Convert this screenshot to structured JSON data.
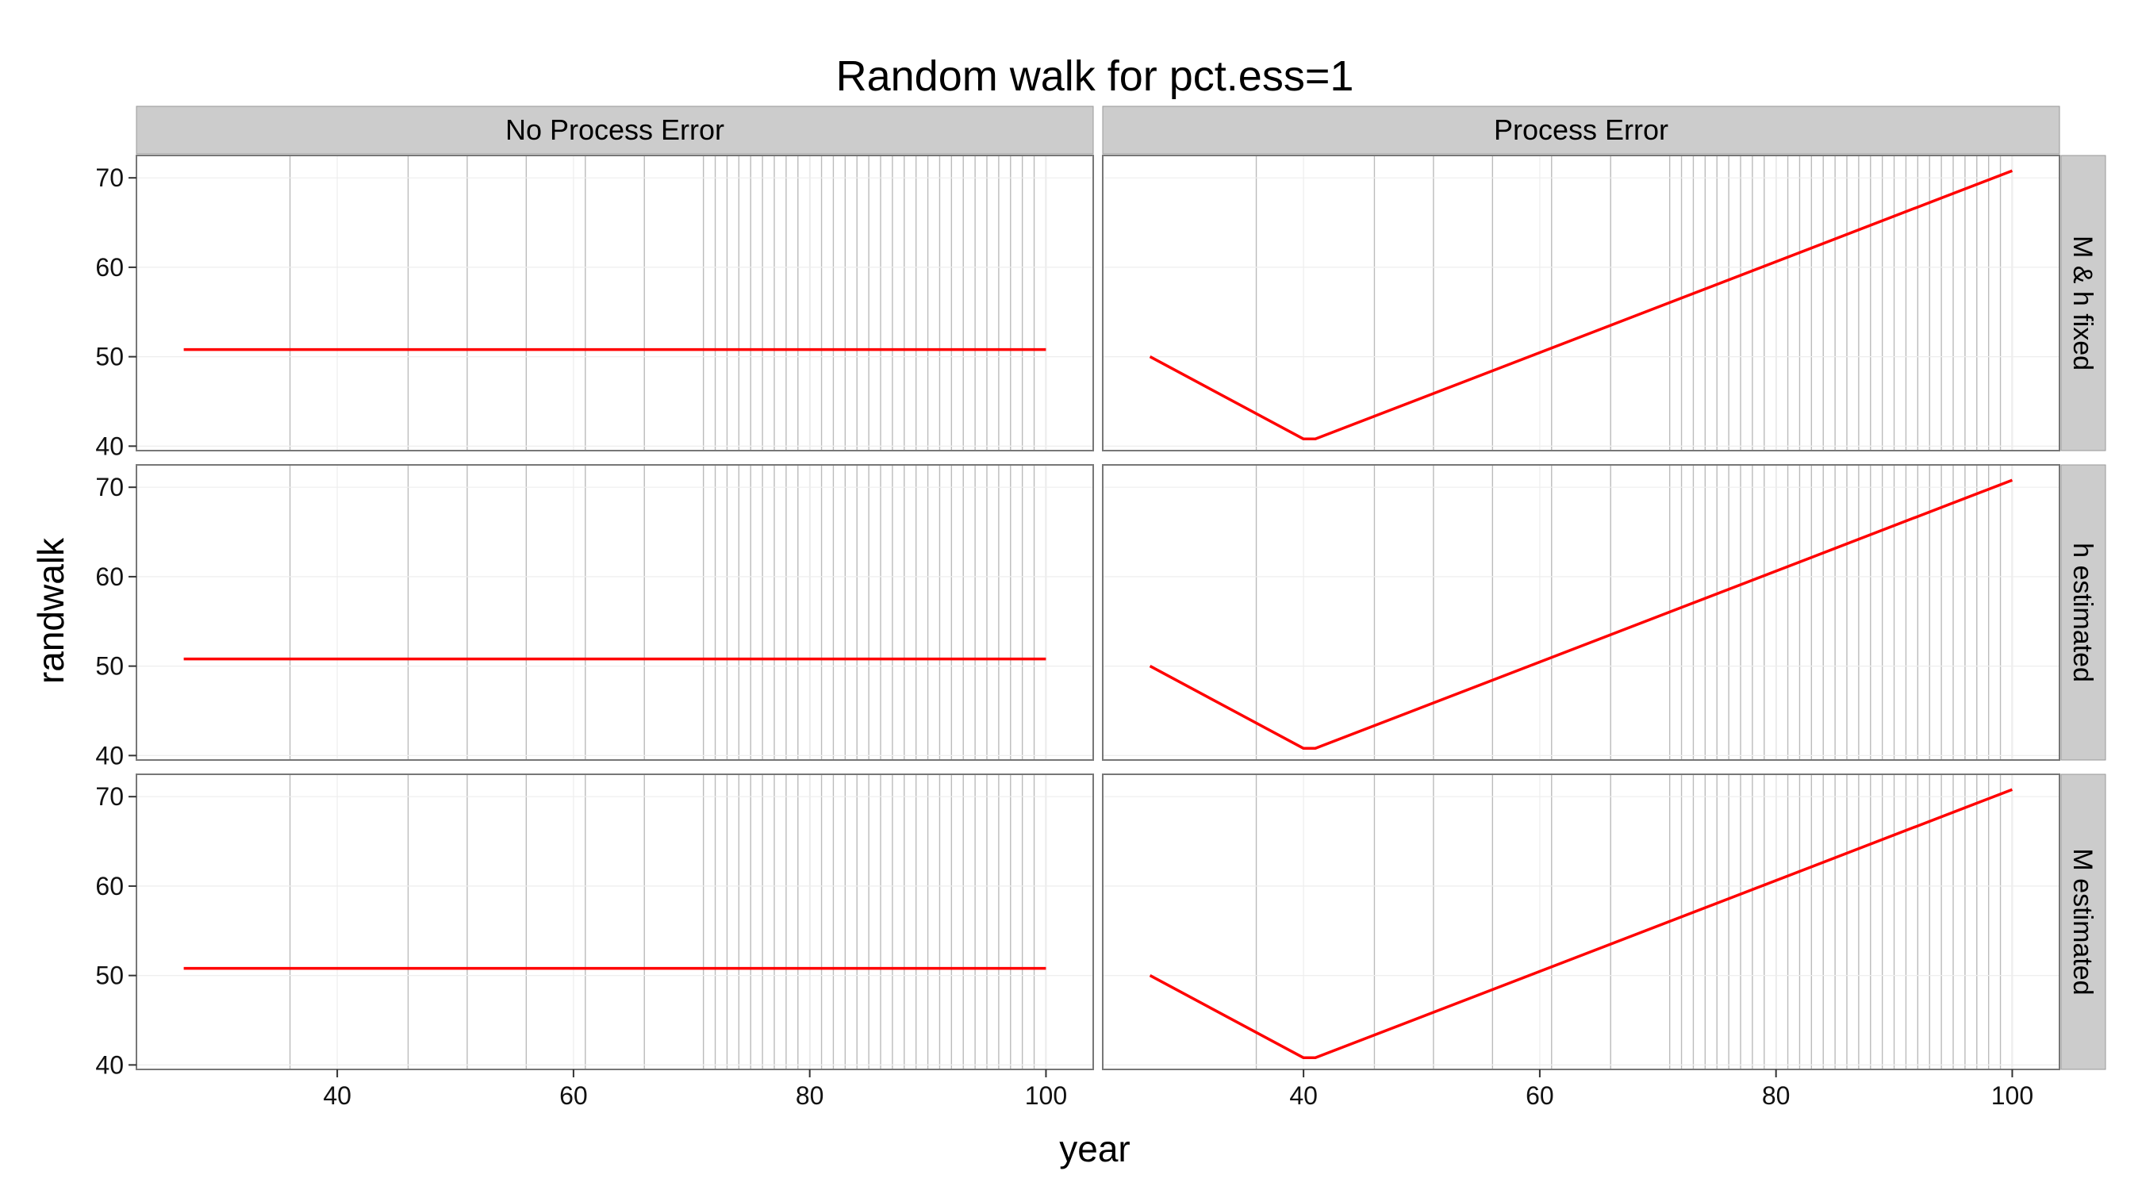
{
  "chart_data": {
    "type": "line",
    "title": "Random walk for pct.ess=1",
    "xlabel": "year",
    "ylabel": "randwalk",
    "xlim": [
      23,
      104
    ],
    "ylim": [
      39.5,
      72.5
    ],
    "x_ticks": [
      40,
      60,
      80,
      100
    ],
    "y_ticks": [
      40,
      50,
      60,
      70
    ],
    "x_tick_labels": [
      "40",
      "60",
      "80",
      "100"
    ],
    "y_tick_labels": [
      "40",
      "50",
      "60",
      "70"
    ],
    "minor_gridlines_x": [
      36,
      46,
      51,
      56,
      61,
      66,
      71,
      72,
      73,
      74,
      75,
      76,
      77,
      78,
      79,
      80,
      81,
      82,
      83,
      84,
      85,
      86,
      87,
      88,
      89,
      90,
      91,
      92,
      93,
      94,
      95,
      96,
      97,
      98,
      99,
      100
    ],
    "col_facets": [
      "No Process Error",
      "Process Error"
    ],
    "row_facets": [
      "M & h fixed",
      "h estimated",
      "M estimated"
    ],
    "line_color": "#ff0000",
    "panel_background": "#ffffff",
    "strip_background": "#cccccc",
    "grid": true,
    "legend": "none",
    "panels": [
      {
        "row": "M & h fixed",
        "col": "No Process Error",
        "x": [
          27,
          100
        ],
        "y": [
          50.8,
          50.8
        ]
      },
      {
        "row": "M & h fixed",
        "col": "Process Error",
        "x": [
          27,
          40,
          41,
          100
        ],
        "y": [
          50,
          40.8,
          40.8,
          70.8
        ]
      },
      {
        "row": "h estimated",
        "col": "No Process Error",
        "x": [
          27,
          100
        ],
        "y": [
          50.8,
          50.8
        ]
      },
      {
        "row": "h estimated",
        "col": "Process Error",
        "x": [
          27,
          40,
          41,
          100
        ],
        "y": [
          50,
          40.8,
          40.8,
          70.8
        ]
      },
      {
        "row": "M estimated",
        "col": "No Process Error",
        "x": [
          27,
          100
        ],
        "y": [
          50.8,
          50.8
        ]
      },
      {
        "row": "M estimated",
        "col": "Process Error",
        "x": [
          27,
          40,
          41,
          100
        ],
        "y": [
          50,
          40.8,
          40.8,
          70.8
        ]
      }
    ]
  }
}
